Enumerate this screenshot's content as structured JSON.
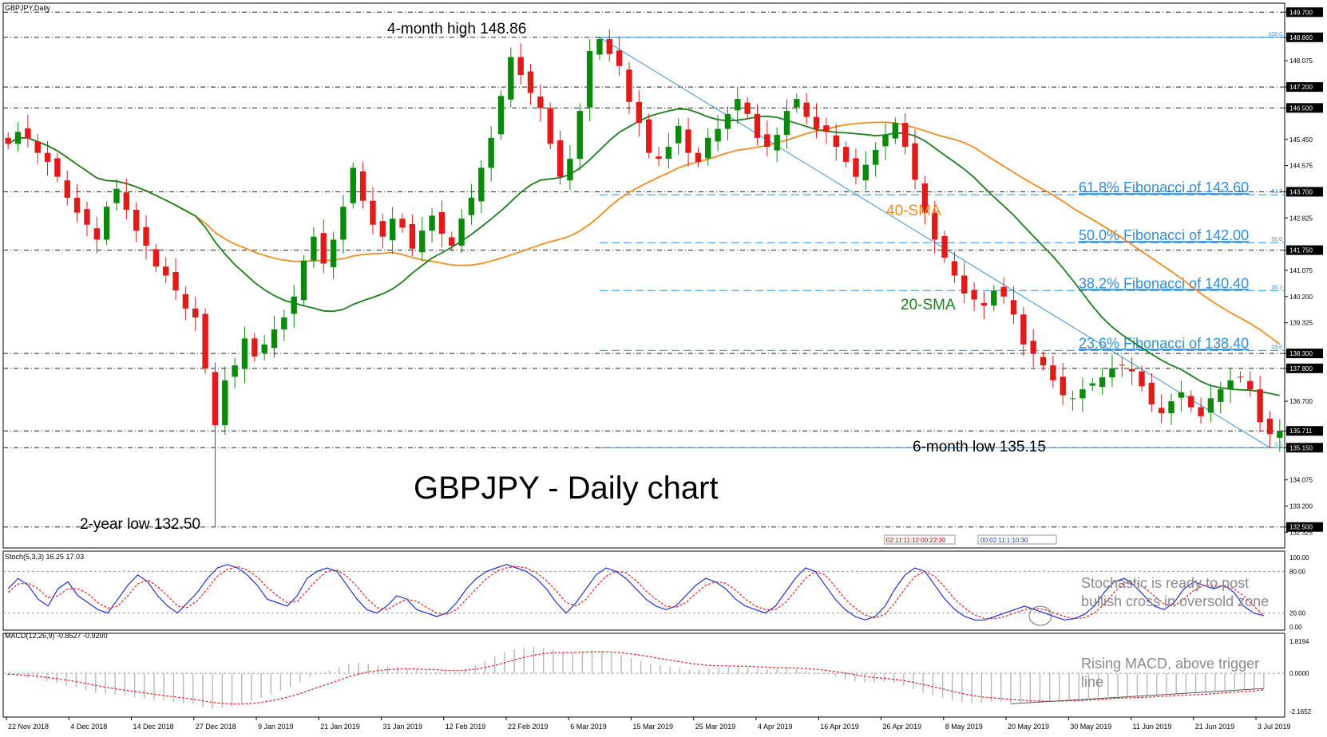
{
  "colors": {
    "bull": "#0a8a0a",
    "bear": "#e31a1a",
    "sma20": "#1e7d1e",
    "sma40": "#f28c1f",
    "fib": "#2f8ee0",
    "trend": "#3b8fd6",
    "stoch_main": "#2230d8",
    "stoch_signal": "#e32222",
    "macd_hist": "#b8b8b8",
    "macd_signal": "#e32222",
    "level": "#222222",
    "price_tag": "#000000"
  },
  "chart_data": [
    {
      "type": "candlestick",
      "symbol_label": "GBPJPY,Daily",
      "title": "GBPJPY - Daily chart",
      "ylim": [
        131.8,
        150.0
      ],
      "y_ticks": [
        "149.700",
        "148.860",
        "148.075",
        "147.200",
        "146.500",
        "145.450",
        "144.575",
        "143.700",
        "142.825",
        "141.750",
        "141.075",
        "140.200",
        "139.325",
        "138.300",
        "137.800",
        "136.700",
        "135.711",
        "135.150",
        "134.075",
        "133.200",
        "132.500",
        "132.325"
      ],
      "highlight_levels": [
        149.7,
        148.86,
        147.2,
        146.5,
        143.7,
        141.75,
        138.3,
        137.8,
        135.711,
        135.15,
        132.5
      ],
      "x_ticks": [
        "22 Nov 2018",
        "4 Dec 2018",
        "14 Dec 2018",
        "27 Dec 2018",
        "9 Jan 2019",
        "21 Jan 2019",
        "31 Jan 2019",
        "12 Feb 2019",
        "22 Feb 2019",
        "6 Mar 2019",
        "15 Mar 2019",
        "25 Mar 2019",
        "4 Apr 2019",
        "16 Apr 2019",
        "26 Apr 2019",
        "8 May 2019",
        "20 May 2019",
        "30 May 2019",
        "11 Jun 2019",
        "21 Jun 2019",
        "3 Jul 2019"
      ],
      "series": [
        {
          "name": "40-SMA"
        },
        {
          "name": "20-SMA"
        }
      ],
      "close_path": [
        145.3,
        145.7,
        145.5,
        145.0,
        144.7,
        144.2,
        143.5,
        143.0,
        142.6,
        142.1,
        143.2,
        143.8,
        143.1,
        142.4,
        141.9,
        141.2,
        140.9,
        140.4,
        139.8,
        139.5,
        137.8,
        135.9,
        137.4,
        137.9,
        138.8,
        138.2,
        138.6,
        139.1,
        139.5,
        140.2,
        141.4,
        142.2,
        141.3,
        142.1,
        143.2,
        144.5,
        143.4,
        142.6,
        142.2,
        142.8,
        142.5,
        141.8,
        142.4,
        142.9,
        142.3,
        141.9,
        142.8,
        143.5,
        144.5,
        145.5,
        146.9,
        148.2,
        147.6,
        147.0,
        146.5,
        145.3,
        144.2,
        144.8,
        146.4,
        148.4,
        148.8,
        148.3,
        147.9,
        146.7,
        146.0,
        145.0,
        144.8,
        145.2,
        145.9,
        145.0,
        144.7,
        145.5,
        145.8,
        146.3,
        146.8,
        146.3,
        145.5,
        145.2,
        145.6,
        146.4,
        146.8,
        146.2,
        145.8,
        145.7,
        145.2,
        144.7,
        144.2,
        144.6,
        145.1,
        145.6,
        146.0,
        145.2,
        144.1,
        143.0,
        142.1,
        141.5,
        140.9,
        140.3,
        140.1,
        139.9,
        140.4,
        140.2,
        139.6,
        138.6,
        138.3,
        137.9,
        137.4,
        136.9,
        136.8,
        137.1,
        137.3,
        137.5,
        137.8,
        137.9,
        137.7,
        137.2,
        136.6,
        136.3,
        136.7,
        137.0,
        136.5,
        136.2,
        136.8,
        137.1,
        137.4,
        137.5,
        137.1,
        136.0,
        135.6,
        135.711
      ],
      "events": [
        {
          "text": "4-month high 148.86",
          "value": 148.86
        },
        {
          "text": "6-month low 135.15",
          "value": 135.15
        },
        {
          "text": "2-year low 132.50",
          "value": 132.5
        }
      ],
      "annotations": [
        "40-SMA",
        "20-SMA"
      ],
      "fibonacci": [
        {
          "label": "61.8% Fibonacci of 143.60",
          "tag": "61.8",
          "value": 143.6
        },
        {
          "label": "50.0% Fibonacci of 142.00",
          "tag": "50.0",
          "value": 142.0
        },
        {
          "label": "38.2% Fibonacci of 140.40",
          "tag": "38.2",
          "value": 140.4
        },
        {
          "label": "23.6% Fibonacci of 138.40",
          "tag": "23.6",
          "value": 138.4
        },
        {
          "label": "",
          "tag": "100.0",
          "value": 148.86
        },
        {
          "label": "",
          "tag": "0.0",
          "value": 135.15
        }
      ],
      "countdown_boxes": [
        "02:11:11:12:00:22:30",
        "00:02:11:1:10:30"
      ]
    },
    {
      "type": "line",
      "title": "Stoch(5,3,3) 16.25 17.03",
      "ylim": [
        0,
        100
      ],
      "y_ticks": [
        "100.00",
        "80.00",
        "20.00",
        "0.00"
      ],
      "series": [
        {
          "name": "Stoch main",
          "values": [
            55,
            70,
            60,
            40,
            30,
            55,
            65,
            45,
            35,
            25,
            20,
            40,
            60,
            75,
            65,
            45,
            30,
            20,
            35,
            50,
            70,
            85,
            90,
            85,
            75,
            60,
            40,
            35,
            30,
            45,
            70,
            80,
            85,
            80,
            60,
            40,
            25,
            20,
            30,
            45,
            40,
            25,
            20,
            15,
            20,
            35,
            55,
            70,
            80,
            85,
            90,
            85,
            80,
            70,
            55,
            35,
            20,
            35,
            55,
            75,
            85,
            80,
            70,
            55,
            40,
            30,
            25,
            30,
            45,
            60,
            70,
            65,
            55,
            40,
            30,
            25,
            20,
            30,
            50,
            70,
            85,
            80,
            60,
            40,
            25,
            15,
            10,
            15,
            30,
            55,
            75,
            85,
            80,
            60,
            40,
            25,
            15,
            10,
            10,
            15,
            20,
            25,
            30,
            25,
            20,
            15,
            10,
            12,
            18,
            30,
            50,
            65,
            70,
            60,
            45,
            30,
            25,
            35,
            55,
            65,
            60,
            55,
            60,
            50,
            30,
            20,
            16.25
          ]
        },
        {
          "name": "Stoch signal",
          "values": [
            50,
            62,
            63,
            55,
            42,
            45,
            55,
            55,
            48,
            35,
            27,
            30,
            45,
            62,
            68,
            58,
            45,
            30,
            28,
            38,
            55,
            73,
            83,
            87,
            82,
            72,
            57,
            45,
            35,
            37,
            52,
            68,
            80,
            82,
            73,
            58,
            41,
            28,
            25,
            33,
            40,
            37,
            28,
            20,
            18,
            25,
            40,
            55,
            70,
            80,
            85,
            87,
            85,
            78,
            67,
            52,
            35,
            30,
            40,
            58,
            73,
            80,
            78,
            67,
            52,
            40,
            30,
            28,
            35,
            48,
            60,
            65,
            63,
            53,
            40,
            30,
            25,
            25,
            35,
            52,
            70,
            80,
            75,
            58,
            40,
            27,
            17,
            13,
            18,
            35,
            55,
            73,
            80,
            73,
            57,
            40,
            27,
            17,
            12,
            12,
            15,
            20,
            25,
            27,
            25,
            20,
            15,
            12,
            13,
            20,
            33,
            50,
            63,
            65,
            57,
            45,
            33,
            30,
            40,
            53,
            60,
            60,
            58,
            55,
            45,
            30,
            17.03
          ]
        }
      ]
    },
    {
      "type": "bar",
      "title": "MACD(12,26,9) -0.8527 -0.9200",
      "ylim": [
        -2.2,
        1.9
      ],
      "y_ticks": [
        "1.8194",
        "0.0000",
        "-2.1652"
      ],
      "series": [
        {
          "name": "MACD",
          "values": [
            -0.1,
            -0.15,
            -0.25,
            -0.3,
            -0.45,
            -0.55,
            -0.7,
            -0.8,
            -0.95,
            -1.1,
            -1.15,
            -1.2,
            -1.25,
            -1.35,
            -1.4,
            -1.5,
            -1.55,
            -1.6,
            -1.7,
            -1.75,
            -1.9,
            -2.0,
            -1.95,
            -1.85,
            -1.7,
            -1.55,
            -1.4,
            -1.2,
            -1.0,
            -0.75,
            -0.5,
            -0.2,
            0.0,
            0.15,
            0.35,
            0.55,
            0.6,
            0.55,
            0.45,
            0.4,
            0.35,
            0.25,
            0.2,
            0.15,
            0.1,
            0.05,
            0.1,
            0.25,
            0.45,
            0.7,
            0.95,
            1.2,
            1.35,
            1.45,
            1.5,
            1.45,
            1.35,
            1.2,
            1.15,
            1.25,
            1.3,
            1.25,
            1.15,
            1.0,
            0.85,
            0.7,
            0.55,
            0.45,
            0.4,
            0.3,
            0.2,
            0.2,
            0.25,
            0.3,
            0.4,
            0.4,
            0.35,
            0.25,
            0.2,
            0.25,
            0.3,
            0.25,
            0.15,
            0.05,
            -0.05,
            -0.2,
            -0.35,
            -0.45,
            -0.5,
            -0.5,
            -0.45,
            -0.55,
            -0.7,
            -0.9,
            -1.1,
            -1.25,
            -1.4,
            -1.55,
            -1.65,
            -1.7,
            -1.65,
            -1.6,
            -1.6,
            -1.65,
            -1.7,
            -1.7,
            -1.65,
            -1.6,
            -1.55,
            -1.5,
            -1.45,
            -1.4,
            -1.35,
            -1.3,
            -1.3,
            -1.3,
            -1.3,
            -1.25,
            -1.2,
            -1.15,
            -1.15,
            -1.15,
            -1.1,
            -1.05,
            -1.0,
            -0.95,
            -0.9,
            -0.9,
            -0.88,
            -0.8527
          ]
        },
        {
          "name": "Signal",
          "values": [
            -0.05,
            -0.08,
            -0.12,
            -0.17,
            -0.23,
            -0.3,
            -0.38,
            -0.47,
            -0.57,
            -0.68,
            -0.78,
            -0.87,
            -0.95,
            -1.03,
            -1.1,
            -1.18,
            -1.25,
            -1.32,
            -1.39,
            -1.46,
            -1.55,
            -1.64,
            -1.7,
            -1.73,
            -1.73,
            -1.7,
            -1.64,
            -1.55,
            -1.44,
            -1.3,
            -1.14,
            -0.95,
            -0.76,
            -0.58,
            -0.39,
            -0.2,
            -0.04,
            0.08,
            0.16,
            0.21,
            0.24,
            0.25,
            0.24,
            0.22,
            0.2,
            0.17,
            0.16,
            0.18,
            0.23,
            0.33,
            0.45,
            0.6,
            0.75,
            0.9,
            1.02,
            1.11,
            1.16,
            1.17,
            1.17,
            1.19,
            1.21,
            1.22,
            1.2,
            1.16,
            1.1,
            1.02,
            0.93,
            0.83,
            0.75,
            0.66,
            0.57,
            0.5,
            0.45,
            0.42,
            0.42,
            0.41,
            0.4,
            0.37,
            0.34,
            0.32,
            0.31,
            0.3,
            0.27,
            0.23,
            0.17,
            0.1,
            0.01,
            -0.08,
            -0.17,
            -0.24,
            -0.28,
            -0.34,
            -0.41,
            -0.51,
            -0.63,
            -0.75,
            -0.88,
            -1.01,
            -1.14,
            -1.25,
            -1.33,
            -1.38,
            -1.42,
            -1.47,
            -1.51,
            -1.55,
            -1.57,
            -1.58,
            -1.57,
            -1.56,
            -1.54,
            -1.51,
            -1.48,
            -1.44,
            -1.41,
            -1.39,
            -1.37,
            -1.35,
            -1.32,
            -1.29,
            -1.26,
            -1.24,
            -1.21,
            -1.18,
            -1.14,
            -1.1,
            -1.06,
            -1.03,
            -1.0,
            -0.92
          ]
        }
      ]
    }
  ],
  "notes": {
    "stoch": "Stochastic is ready to post bullish cross in oversold zone",
    "macd": "Rising MACD, above trigger line"
  }
}
